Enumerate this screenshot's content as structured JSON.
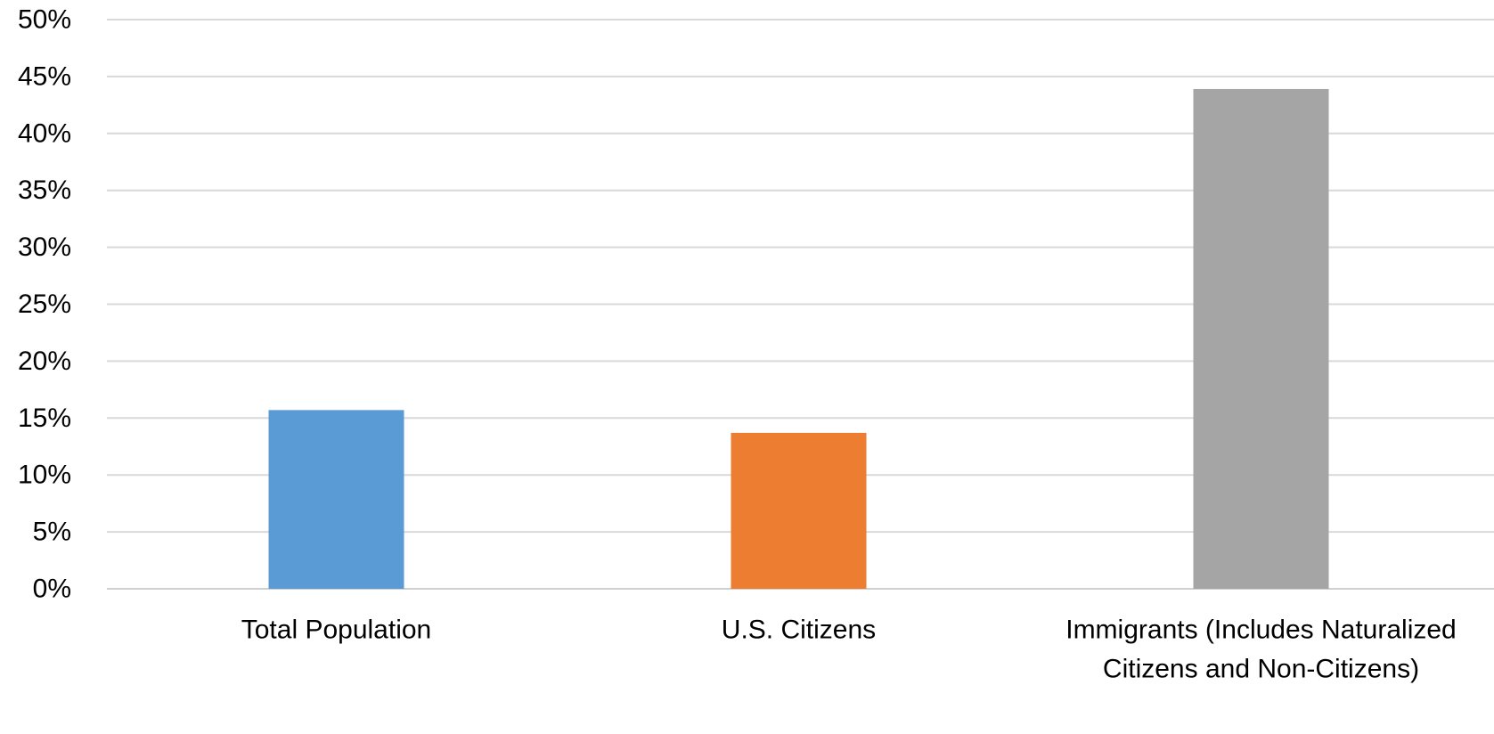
{
  "chart_data": {
    "type": "bar",
    "title": "",
    "xlabel": "",
    "ylabel": "",
    "categories": [
      [
        "Total Population"
      ],
      [
        "U.S. Citizens"
      ],
      [
        "Immigrants (Includes Naturalized",
        "Citizens and Non-Citizens)"
      ]
    ],
    "values": [
      15.7,
      13.7,
      43.9
    ],
    "colors": [
      "#5b9bd5",
      "#ed7d31",
      "#a5a5a5"
    ],
    "ylim": [
      0,
      50
    ],
    "yticks": [
      "0%",
      "5%",
      "10%",
      "15%",
      "20%",
      "25%",
      "30%",
      "35%",
      "40%",
      "45%",
      "50%"
    ],
    "grid": true,
    "legend": "none"
  }
}
